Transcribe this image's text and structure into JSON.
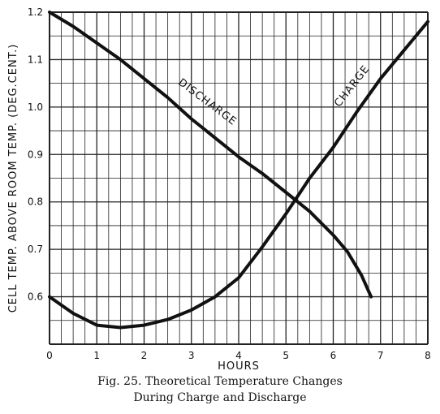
{
  "chart_data": {
    "type": "line",
    "xlabel": "HOURS",
    "ylabel": "CELL TEMP. ABOVE ROOM TEMP. (DEG.CENT.)",
    "xlim": [
      0,
      8
    ],
    "ylim": [
      0.5,
      1.2
    ],
    "x_ticks": [
      "0",
      "1",
      "2",
      "3",
      "4",
      "5",
      "6",
      "7",
      "8"
    ],
    "y_ticks": [
      "0.6",
      "0.7",
      "0.8",
      "0.9",
      "1.0",
      "1.1",
      "1.2"
    ],
    "grid": true,
    "series": [
      {
        "name": "DISCHARGE",
        "x": [
          0,
          0.5,
          1,
          1.5,
          2,
          2.5,
          3,
          3.5,
          4,
          4.5,
          5,
          5.5,
          6,
          6.3,
          6.6,
          6.8
        ],
        "y": [
          1.2,
          1.17,
          1.135,
          1.1,
          1.06,
          1.02,
          0.975,
          0.935,
          0.895,
          0.86,
          0.82,
          0.78,
          0.73,
          0.695,
          0.645,
          0.6
        ]
      },
      {
        "name": "CHARGE",
        "x": [
          0,
          0.5,
          1,
          1.5,
          2,
          2.5,
          3,
          3.5,
          4,
          4.5,
          5,
          5.5,
          6,
          6.5,
          7,
          7.5,
          8
        ],
        "y": [
          0.6,
          0.565,
          0.54,
          0.535,
          0.54,
          0.552,
          0.572,
          0.6,
          0.64,
          0.705,
          0.775,
          0.85,
          0.915,
          0.99,
          1.06,
          1.12,
          1.18
        ]
      }
    ]
  },
  "caption": {
    "line1": "Fig. 25.   Theoretical Temperature Changes",
    "line2": "During Charge and Discharge"
  }
}
